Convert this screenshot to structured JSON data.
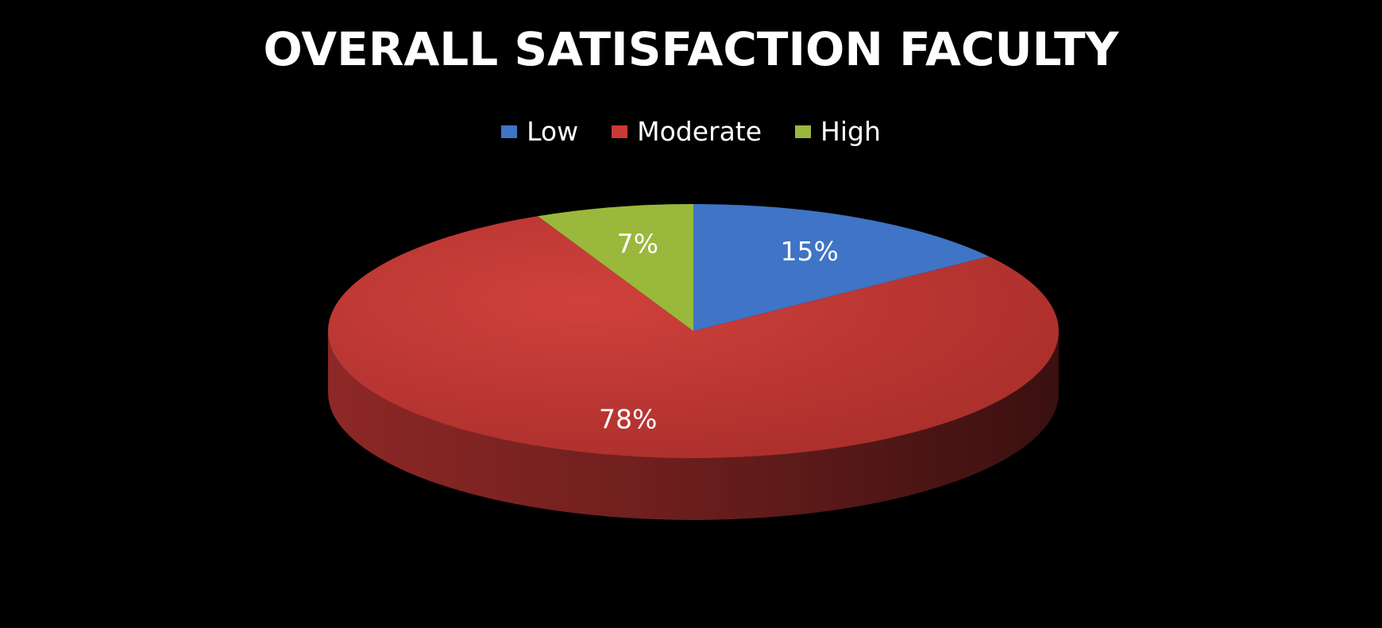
{
  "chart_data": {
    "type": "pie",
    "title": "OVERALL SATISFACTION FACULTY",
    "legend_position": "top",
    "labels": [
      "Low",
      "Moderate",
      "High"
    ],
    "values": [
      15,
      78,
      7
    ],
    "data_labels": [
      "15%",
      "78%",
      "7%"
    ],
    "colors": [
      "#3f74c6",
      "#c83a36",
      "#9ab83c"
    ],
    "style": "3d"
  }
}
